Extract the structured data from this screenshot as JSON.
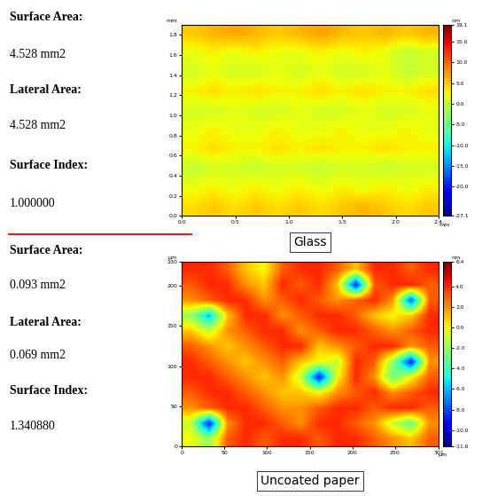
{
  "chart_data": [
    {
      "type": "heatmap",
      "title": "Glass",
      "annotations": [
        "Surface Area:",
        "4.528 mm2",
        "Lateral Area:",
        "4.528 mm2",
        "Surface Index:",
        "1.000000"
      ],
      "x_unit": "mm",
      "y_unit": "mm",
      "xlim": [
        0,
        2.4
      ],
      "ylim": [
        0,
        1.9
      ],
      "xticks": [
        {
          "value": 0,
          "label": "0.0"
        },
        0.5,
        {
          "value": 1,
          "label": "1.0"
        },
        1.5,
        {
          "value": 2,
          "label": "2.0"
        },
        2.4
      ],
      "yticks": [
        {
          "value": 0,
          "label": "0.0"
        },
        0.2,
        0.4,
        0.6,
        0.8,
        {
          "value": 1,
          "label": "1.0"
        },
        1.2,
        1.4,
        1.6,
        1.8
      ],
      "cells": [
        [
          5,
          6,
          7,
          6,
          5,
          6,
          7,
          6,
          5,
          6,
          5,
          6
        ],
        [
          2,
          3,
          2,
          3,
          2,
          2,
          3,
          2,
          3,
          2,
          0,
          1
        ],
        [
          1,
          2,
          1,
          1,
          2,
          1,
          2,
          1,
          1,
          2,
          0,
          1
        ],
        [
          3,
          4,
          3,
          4,
          3,
          3,
          4,
          3,
          4,
          3,
          3,
          4
        ],
        [
          1,
          1,
          2,
          1,
          1,
          2,
          1,
          1,
          2,
          1,
          1,
          2
        ],
        [
          2,
          3,
          2,
          2,
          3,
          2,
          2,
          3,
          2,
          2,
          3,
          2
        ],
        [
          3,
          4,
          3,
          3,
          4,
          3,
          4,
          3,
          3,
          4,
          3,
          3
        ],
        [
          0,
          1,
          1,
          0,
          1,
          1,
          0,
          1,
          1,
          0,
          1,
          1
        ],
        [
          2,
          3,
          2,
          3,
          2,
          3,
          2,
          3,
          2,
          3,
          2,
          3
        ],
        [
          4,
          5,
          4,
          5,
          4,
          5,
          4,
          5,
          6,
          5,
          4,
          5
        ]
      ],
      "colorbar_label": "nm",
      "colorbar_range": [
        -27.1,
        19.1
      ],
      "colorbar_ticks": [
        {
          "value": -27.1,
          "label": "-27.1"
        },
        {
          "value": -20,
          "label": "-20.0"
        },
        {
          "value": -15,
          "label": "-15.0"
        },
        {
          "value": -10,
          "label": "-10.0"
        },
        {
          "value": -5,
          "label": "-5.0"
        },
        {
          "value": 0,
          "label": "0.0"
        },
        {
          "value": 5,
          "label": "5.0"
        },
        {
          "value": 10,
          "label": "10.0"
        },
        {
          "value": 15,
          "label": "15.0"
        },
        {
          "value": 19.1,
          "label": "19.1"
        }
      ]
    },
    {
      "type": "heatmap",
      "title": "Uncoated paper",
      "annotations": [
        "Surface Area:",
        "0.093 mm2",
        "Lateral Area:",
        "0.069 mm2",
        "Surface Index:",
        "1.340880"
      ],
      "x_unit": "µm",
      "y_unit": "µm",
      "xlim": [
        0,
        301
      ],
      "ylim": [
        0,
        230
      ],
      "xticks": [
        0,
        50,
        100,
        150,
        200,
        250,
        301
      ],
      "yticks": [
        0,
        50,
        100,
        150,
        200,
        230
      ],
      "cells": [
        [
          4,
          4,
          3,
          1,
          0,
          3,
          4,
          4,
          3,
          1,
          4,
          4,
          3,
          4
        ],
        [
          3,
          4,
          4,
          2,
          1,
          4,
          3,
          4,
          1,
          -9,
          3,
          4,
          4,
          3
        ],
        [
          2,
          3,
          4,
          4,
          2,
          3,
          4,
          3,
          2,
          3,
          4,
          2,
          -8,
          3
        ],
        [
          -2,
          -6,
          1,
          4,
          4,
          2,
          3,
          4,
          4,
          3,
          1,
          0,
          1,
          4
        ],
        [
          1,
          -1,
          2,
          3,
          4,
          4,
          2,
          3,
          4,
          4,
          3,
          2,
          3,
          4
        ],
        [
          3,
          2,
          1,
          2,
          3,
          4,
          4,
          1,
          2,
          3,
          4,
          4,
          2,
          3
        ],
        [
          4,
          3,
          2,
          1,
          2,
          3,
          1,
          0,
          -1,
          4,
          3,
          -2,
          -9,
          2
        ],
        [
          4,
          4,
          3,
          2,
          1,
          2,
          -1,
          -9,
          0,
          4,
          2,
          -3,
          0,
          3
        ],
        [
          3,
          4,
          4,
          3,
          2,
          1,
          1,
          0,
          2,
          3,
          4,
          2,
          3,
          4
        ],
        [
          2,
          3,
          4,
          4,
          3,
          2,
          2,
          3,
          4,
          4,
          3,
          4,
          4,
          3
        ],
        [
          -1,
          -9,
          2,
          4,
          4,
          3,
          2,
          4,
          4,
          3,
          2,
          -1,
          -3,
          2
        ],
        [
          0,
          -2,
          3,
          4,
          3,
          4,
          4,
          3,
          4,
          4,
          3,
          2,
          1,
          3
        ]
      ],
      "colorbar_label": "nm",
      "colorbar_range": [
        -11.6,
        6.4
      ],
      "colorbar_ticks": [
        {
          "value": -11.6,
          "label": "-11.6"
        },
        {
          "value": -10,
          "label": "-10.0"
        },
        {
          "value": -8,
          "label": "-8.0"
        },
        {
          "value": -6,
          "label": "-6.0"
        },
        {
          "value": -4,
          "label": "-4.0"
        },
        {
          "value": -2,
          "label": "-2.0"
        },
        {
          "value": 0,
          "label": "0.0"
        },
        {
          "value": 2,
          "label": "2.0"
        },
        {
          "value": 4,
          "label": "4.0"
        },
        {
          "value": 6.4,
          "label": "6.4"
        }
      ]
    }
  ]
}
